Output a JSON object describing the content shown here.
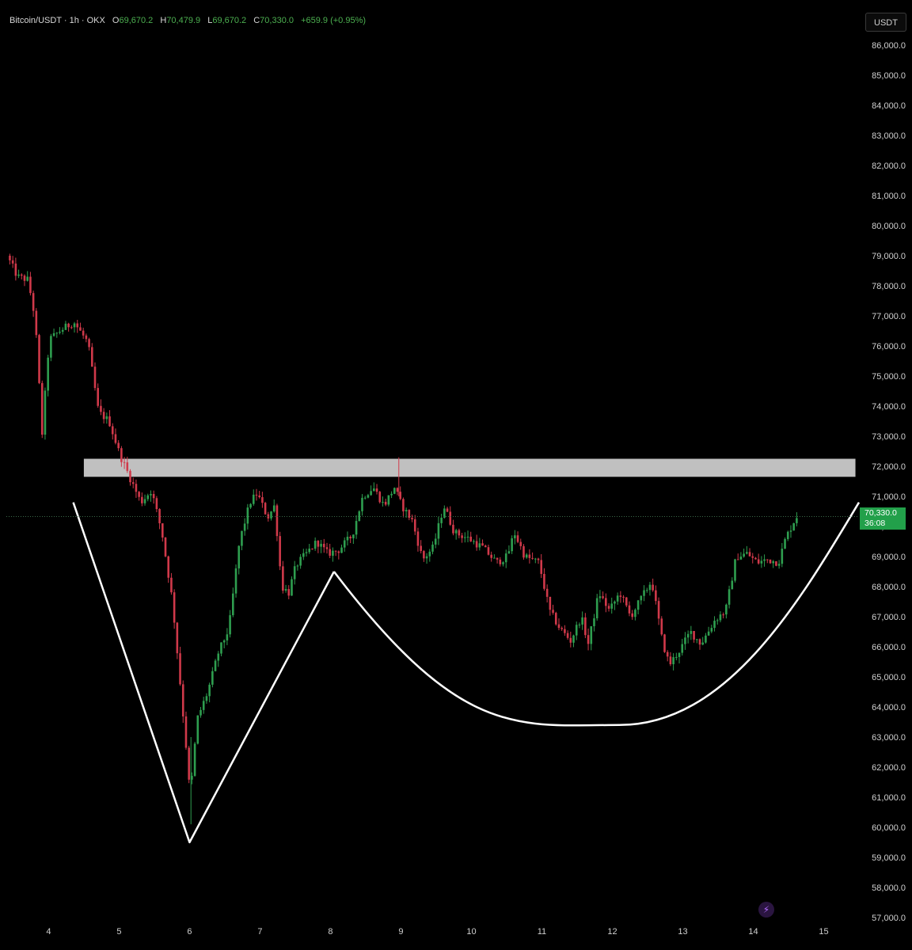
{
  "header": {
    "symbol": "Bitcoin/USDT · 1h · OKX",
    "open_label": "O",
    "open": "69,670.2",
    "high_label": "H",
    "high": "70,479.9",
    "low_label": "L",
    "low": "69,670.2",
    "close_label": "C",
    "close": "70,330.0",
    "change": "+659.9 (+0.95%)"
  },
  "toolbar": {
    "currency_button": "USDT"
  },
  "price_tag": {
    "price": "70,330.0",
    "countdown": "36:08"
  },
  "colors": {
    "up": "#26a69a",
    "up_candle": "#2e9e4f",
    "down_candle": "#d0394a",
    "zone": "#d0d0d0",
    "pattern": "#ffffff",
    "price_tag": "#22a04a",
    "axis_text": "#d0d0d0"
  },
  "icons": {
    "lightning": "lightning-icon"
  },
  "chart_data": {
    "type": "candlestick",
    "title": "Bitcoin/USDT · 1h · OKX",
    "y_ticks": [
      "57,000.0",
      "58,000.0",
      "59,000.0",
      "60,000.0",
      "61,000.0",
      "62,000.0",
      "63,000.0",
      "64,000.0",
      "65,000.0",
      "66,000.0",
      "67,000.0",
      "68,000.0",
      "69,000.0",
      "70,000.0",
      "71,000.0",
      "72,000.0",
      "73,000.0",
      "74,000.0",
      "75,000.0",
      "76,000.0",
      "77,000.0",
      "78,000.0",
      "79,000.0",
      "80,000.0",
      "81,000.0",
      "82,000.0",
      "83,000.0",
      "84,000.0",
      "85,000.0",
      "86,000.0"
    ],
    "x_ticks": [
      "4",
      "5",
      "6",
      "7",
      "8",
      "9",
      "10",
      "11",
      "12",
      "13",
      "14",
      "15"
    ],
    "ylim": [
      57000,
      86000
    ],
    "xlim": [
      3.4,
      15.5
    ],
    "current_price": 70330,
    "resistance_zone": {
      "from_day": 4.5,
      "to_day": 15.45,
      "low": 71650,
      "high": 72250
    },
    "v_pattern": [
      [
        4.35,
        70800
      ],
      [
        6.0,
        59500
      ],
      [
        8.05,
        68500
      ]
    ],
    "cup_pattern": {
      "start": [
        8.05,
        68500
      ],
      "bottom": [
        12.1,
        63400
      ],
      "end": [
        15.5,
        70800
      ]
    },
    "price_path": [
      [
        3.45,
        79000
      ],
      [
        3.6,
        78300
      ],
      [
        3.75,
        78200
      ],
      [
        3.85,
        76900
      ],
      [
        3.95,
        73100
      ],
      [
        4.05,
        76200
      ],
      [
        4.2,
        76500
      ],
      [
        4.4,
        76800
      ],
      [
        4.6,
        76100
      ],
      [
        4.75,
        73800
      ],
      [
        4.9,
        73500
      ],
      [
        5.05,
        72400
      ],
      [
        5.2,
        71600
      ],
      [
        5.35,
        70800
      ],
      [
        5.5,
        71200
      ],
      [
        5.65,
        69800
      ],
      [
        5.8,
        67500
      ],
      [
        5.9,
        65000
      ],
      [
        6.0,
        62500
      ],
      [
        6.05,
        61000
      ],
      [
        6.15,
        63600
      ],
      [
        6.3,
        64500
      ],
      [
        6.45,
        65800
      ],
      [
        6.6,
        66600
      ],
      [
        6.75,
        69500
      ],
      [
        6.9,
        70800
      ],
      [
        7.0,
        71100
      ],
      [
        7.15,
        70300
      ],
      [
        7.25,
        70700
      ],
      [
        7.35,
        68000
      ],
      [
        7.45,
        67800
      ],
      [
        7.55,
        68700
      ],
      [
        7.7,
        69100
      ],
      [
        7.85,
        69500
      ],
      [
        8.0,
        69100
      ],
      [
        8.15,
        69200
      ],
      [
        8.35,
        69700
      ],
      [
        8.5,
        71000
      ],
      [
        8.65,
        71300
      ],
      [
        8.8,
        70700
      ],
      [
        8.95,
        71300
      ],
      [
        9.05,
        70700
      ],
      [
        9.2,
        70200
      ],
      [
        9.35,
        68900
      ],
      [
        9.5,
        69300
      ],
      [
        9.65,
        70700
      ],
      [
        9.8,
        69800
      ],
      [
        10.0,
        69600
      ],
      [
        10.2,
        69300
      ],
      [
        10.4,
        68800
      ],
      [
        10.55,
        69000
      ],
      [
        10.65,
        69800
      ],
      [
        10.8,
        69000
      ],
      [
        11.0,
        68800
      ],
      [
        11.15,
        67200
      ],
      [
        11.3,
        66600
      ],
      [
        11.45,
        66200
      ],
      [
        11.6,
        67000
      ],
      [
        11.7,
        66100
      ],
      [
        11.85,
        67800
      ],
      [
        12.0,
        67200
      ],
      [
        12.15,
        67800
      ],
      [
        12.3,
        67000
      ],
      [
        12.45,
        67600
      ],
      [
        12.6,
        68200
      ],
      [
        12.75,
        66200
      ],
      [
        12.85,
        65400
      ],
      [
        13.0,
        65900
      ],
      [
        13.15,
        66500
      ],
      [
        13.3,
        66100
      ],
      [
        13.5,
        66900
      ],
      [
        13.65,
        67200
      ],
      [
        13.8,
        69000
      ],
      [
        13.95,
        69100
      ],
      [
        14.1,
        68800
      ],
      [
        14.25,
        68900
      ],
      [
        14.4,
        68800
      ],
      [
        14.5,
        69600
      ],
      [
        14.65,
        70330
      ]
    ]
  }
}
